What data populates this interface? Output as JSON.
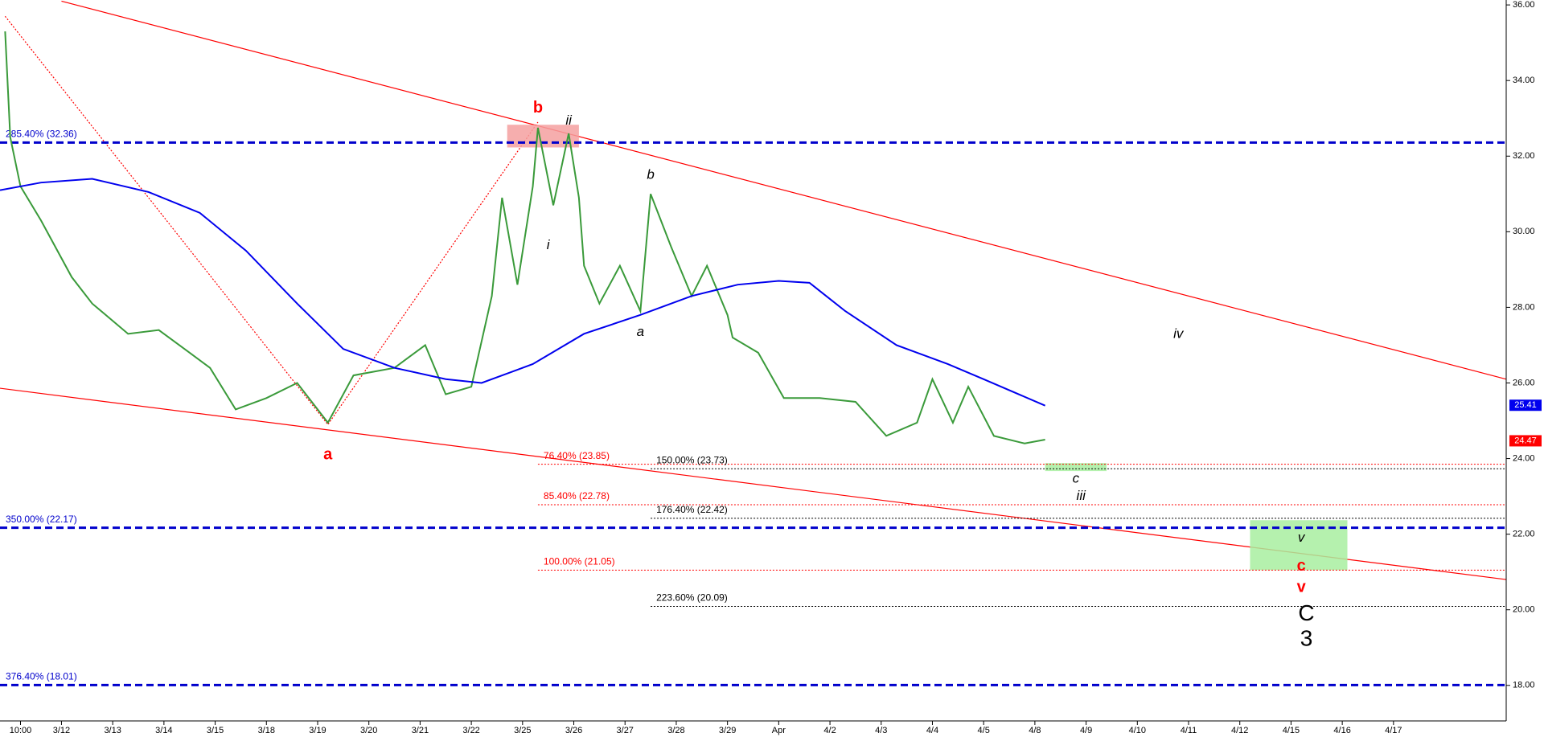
{
  "chart_data": {
    "type": "line",
    "xlim": [
      -0.2,
      29.2
    ],
    "ylim": [
      17.06,
      36.13
    ],
    "xticks": [
      {
        "value": 0.2,
        "label": "10:00"
      },
      {
        "value": 1,
        "label": "3/12"
      },
      {
        "value": 2,
        "label": "3/13"
      },
      {
        "value": 3,
        "label": "3/14"
      },
      {
        "value": 4,
        "label": "3/15"
      },
      {
        "value": 5,
        "label": "3/18"
      },
      {
        "value": 6,
        "label": "3/19"
      },
      {
        "value": 7,
        "label": "3/20"
      },
      {
        "value": 8,
        "label": "3/21"
      },
      {
        "value": 9,
        "label": "3/22"
      },
      {
        "value": 10,
        "label": "3/25"
      },
      {
        "value": 11,
        "label": "3/26"
      },
      {
        "value": 12,
        "label": "3/27"
      },
      {
        "value": 13,
        "label": "3/28"
      },
      {
        "value": 14,
        "label": "3/29"
      },
      {
        "value": 15,
        "label": "Apr"
      },
      {
        "value": 16,
        "label": "4/2"
      },
      {
        "value": 17,
        "label": "4/3"
      },
      {
        "value": 18,
        "label": "4/4"
      },
      {
        "value": 19,
        "label": "4/5"
      },
      {
        "value": 20,
        "label": "4/8"
      },
      {
        "value": 21,
        "label": "4/9"
      },
      {
        "value": 22,
        "label": "4/10"
      },
      {
        "value": 23,
        "label": "4/11"
      },
      {
        "value": 24,
        "label": "4/12"
      },
      {
        "value": 25,
        "label": "4/15"
      },
      {
        "value": 26,
        "label": "4/16"
      },
      {
        "value": 27,
        "label": "4/17"
      }
    ],
    "yticks": [
      {
        "value": 18,
        "label": "18.00"
      },
      {
        "value": 20,
        "label": "20.00"
      },
      {
        "value": 22,
        "label": "22.00"
      },
      {
        "value": 24,
        "label": "24.00"
      },
      {
        "value": 26,
        "label": "26.00"
      },
      {
        "value": 28,
        "label": "28.00"
      },
      {
        "value": 30,
        "label": "30.00"
      },
      {
        "value": 32,
        "label": "32.00"
      },
      {
        "value": 34,
        "label": "34.00"
      },
      {
        "value": 36,
        "label": "36.00"
      }
    ],
    "series": [
      {
        "color": "#3a9a3a",
        "x": [
          -0.1,
          0.0,
          0.2,
          0.6,
          1.2,
          1.6,
          2.3,
          2.9,
          3.5,
          3.9,
          4.4,
          5.0,
          5.6,
          6.2,
          6.7,
          7.5,
          8.1,
          8.5,
          9.0,
          9.4,
          9.6,
          9.9,
          10.2,
          10.3,
          10.6,
          10.9,
          11.1,
          11.2,
          11.5,
          11.9,
          12.3,
          12.5,
          12.9,
          13.3,
          13.6,
          14.0,
          14.1,
          14.6,
          15.1,
          15.8,
          16.5,
          17.1,
          17.7,
          18.0,
          18.4,
          18.7,
          19.2,
          19.8,
          20.2
        ],
        "values": [
          35.3,
          32.5,
          31.2,
          30.3,
          28.8,
          28.1,
          27.3,
          27.4,
          26.8,
          26.4,
          25.3,
          25.6,
          26.0,
          24.95,
          26.2,
          26.4,
          27.0,
          25.7,
          25.9,
          28.3,
          30.9,
          28.6,
          31.2,
          32.75,
          30.7,
          32.6,
          30.9,
          29.1,
          28.1,
          29.1,
          27.9,
          31.0,
          29.6,
          28.3,
          29.1,
          27.8,
          27.2,
          26.8,
          25.6,
          25.6,
          25.5,
          24.6,
          24.95,
          26.1,
          24.95,
          25.9,
          24.6,
          24.4,
          24.5
        ]
      },
      {
        "color": "#0000ee",
        "x": [
          -0.2,
          0.6,
          1.6,
          2.7,
          3.7,
          4.6,
          5.6,
          6.5,
          7.5,
          8.5,
          9.2,
          10.2,
          11.2,
          12.3,
          13.3,
          14.2,
          15.0,
          15.6,
          16.3,
          17.3,
          18.3,
          19.0,
          20.2
        ],
        "values": [
          31.1,
          31.3,
          31.4,
          31.05,
          30.5,
          29.5,
          28.1,
          26.9,
          26.4,
          26.1,
          26.0,
          26.5,
          27.3,
          27.8,
          28.3,
          28.6,
          28.7,
          28.65,
          27.9,
          27.0,
          26.5,
          26.1,
          25.4
        ]
      }
    ],
    "price_tags": [
      {
        "value": 25.41,
        "color": "#0000ee"
      },
      {
        "value": 24.47,
        "color": "#ff0000"
      }
    ],
    "levels": [
      {
        "label": "285.40% (32.36)",
        "value": 32.36,
        "color": "#0000cc",
        "style": "dash",
        "from": -0.2
      },
      {
        "label": "350.00% (22.17)",
        "value": 22.17,
        "color": "#0000cc",
        "style": "dash",
        "from": -0.2
      },
      {
        "label": "376.40% (18.01)",
        "value": 18.01,
        "color": "#0000cc",
        "style": "dash",
        "from": -0.2
      },
      {
        "label": "76.40% (23.85)",
        "value": 23.85,
        "color": "#ff0000",
        "style": "dot",
        "from": 10.3
      },
      {
        "label": "85.40% (22.78)",
        "value": 22.78,
        "color": "#ff0000",
        "style": "dot",
        "from": 10.3
      },
      {
        "label": "100.00% (21.05)",
        "value": 21.05,
        "color": "#ff0000",
        "style": "dot",
        "from": 10.3
      },
      {
        "label": "150.00% (23.73)",
        "value": 23.73,
        "color": "#000000",
        "style": "dot",
        "from": 12.5
      },
      {
        "label": "176.40% (22.42)",
        "value": 22.42,
        "color": "#000000",
        "style": "dot",
        "from": 12.5
      },
      {
        "label": "223.60% (20.09)",
        "value": 20.09,
        "color": "#000000",
        "style": "dot",
        "from": 12.5
      }
    ],
    "trendlines": [
      {
        "x": [
          1.0,
          29.2
        ],
        "y": [
          36.1,
          26.1
        ],
        "color": "#ff0000",
        "style": "solid"
      },
      {
        "x": [
          -0.2,
          29.2
        ],
        "y": [
          25.86,
          20.8
        ],
        "color": "#ff0000",
        "style": "solid"
      },
      {
        "x": [
          -0.1,
          6.2,
          10.3
        ],
        "y": [
          35.7,
          24.9,
          32.9
        ],
        "color": "#ff0000",
        "style": "dot"
      }
    ],
    "boxes": [
      {
        "x": [
          9.7,
          11.1
        ],
        "y": [
          32.83,
          32.23
        ],
        "color": "#f4a0a0"
      },
      {
        "x": [
          20.2,
          21.4
        ],
        "y": [
          23.88,
          23.67
        ],
        "color": "#a8eea0"
      },
      {
        "x": [
          24.2,
          26.1
        ],
        "y": [
          22.37,
          21.05
        ],
        "color": "#a8eea0"
      }
    ],
    "annotations": [
      {
        "text": "b",
        "x": 10.3,
        "y": 33.27,
        "color": "#ff0000",
        "style": "bold"
      },
      {
        "text": "ii",
        "x": 10.9,
        "y": 32.93,
        "color": "#000000",
        "style": "italic"
      },
      {
        "text": "i",
        "x": 10.5,
        "y": 29.63,
        "color": "#000000",
        "style": "italic"
      },
      {
        "text": "b",
        "x": 12.5,
        "y": 31.5,
        "color": "#000000",
        "style": "italic"
      },
      {
        "text": "a",
        "x": 12.3,
        "y": 27.34,
        "color": "#000000",
        "style": "italic"
      },
      {
        "text": "a",
        "x": 6.2,
        "y": 24.09,
        "color": "#ff0000",
        "style": "bold"
      },
      {
        "text": "iv",
        "x": 22.8,
        "y": 27.29,
        "color": "#000000",
        "style": "italic"
      },
      {
        "text": "c",
        "x": 20.8,
        "y": 23.46,
        "color": "#000000",
        "style": "italic"
      },
      {
        "text": "iii",
        "x": 20.9,
        "y": 23.0,
        "color": "#000000",
        "style": "italic"
      },
      {
        "text": "v",
        "x": 25.2,
        "y": 21.9,
        "color": "#000000",
        "style": "italic"
      },
      {
        "text": "c",
        "x": 25.2,
        "y": 21.15,
        "color": "#ff0000",
        "style": "bold"
      },
      {
        "text": "v",
        "x": 25.2,
        "y": 20.58,
        "color": "#ff0000",
        "style": "bold"
      },
      {
        "text": "C",
        "x": 25.3,
        "y": 19.87,
        "color": "#000000",
        "style": "big"
      },
      {
        "text": "3",
        "x": 25.3,
        "y": 19.2,
        "color": "#000000",
        "style": "big"
      }
    ]
  }
}
